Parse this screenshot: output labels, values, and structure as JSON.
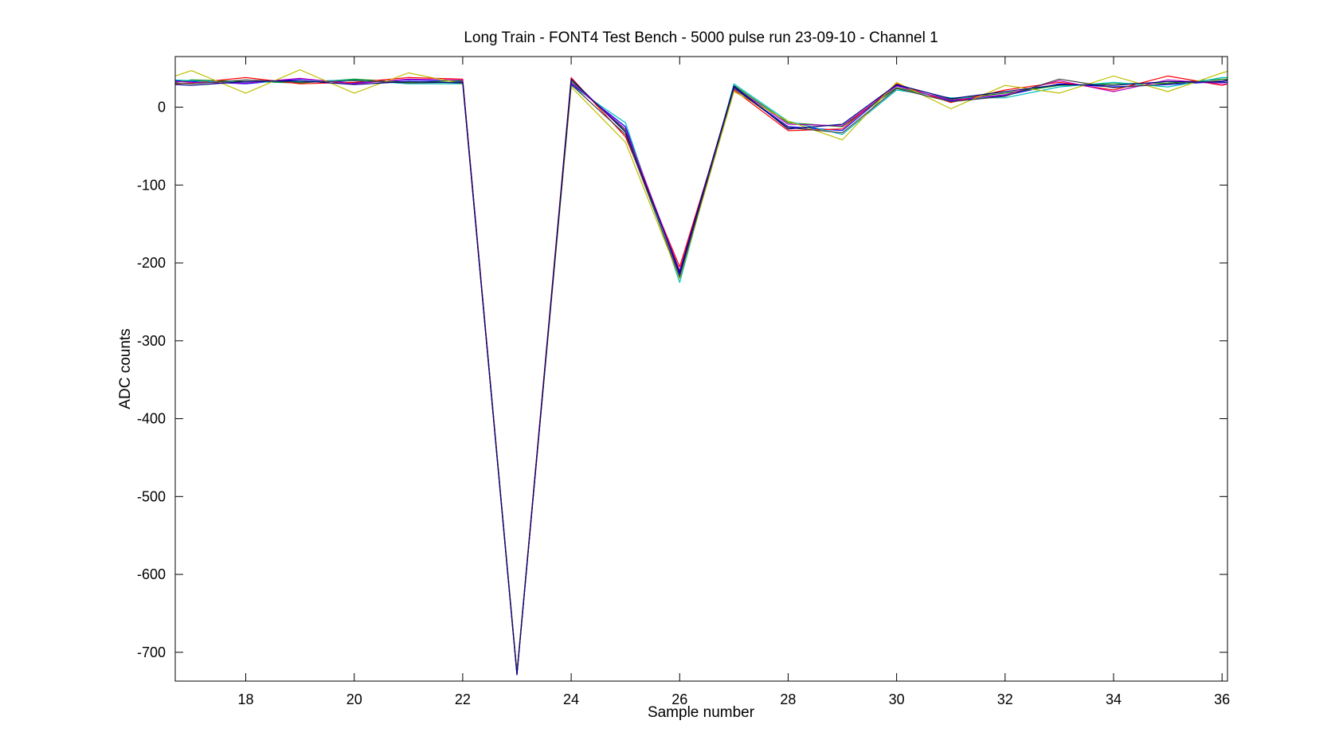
{
  "chart_data": {
    "type": "line",
    "title": "Long Train - FONT4 Test Bench - 5000 pulse run 23-09-10 - Channel 1",
    "xlabel": "Sample number",
    "ylabel": "ADC counts",
    "xlim": [
      16.7,
      36.1
    ],
    "ylim": [
      -737,
      65
    ],
    "xticks": [
      18,
      20,
      22,
      24,
      26,
      28,
      30,
      32,
      34,
      36
    ],
    "yticks": [
      0,
      -100,
      -200,
      -300,
      -400,
      -500,
      -600,
      -700
    ],
    "grid": false,
    "legend": "none",
    "x": [
      16.7,
      17,
      18,
      19,
      20,
      21,
      22,
      23,
      24,
      25,
      26,
      27,
      28,
      29,
      30,
      31,
      32,
      33,
      34,
      35,
      36,
      36.1
    ],
    "series": [
      {
        "color": "#0000ff",
        "values": [
          34,
          33,
          30,
          36,
          31,
          35,
          33,
          -728,
          30,
          -25,
          -215,
          25,
          -25,
          -30,
          28,
          8,
          15,
          30,
          26,
          29,
          33,
          34
        ]
      },
      {
        "color": "#008000",
        "values": [
          32,
          35,
          33,
          31,
          36,
          32,
          34,
          -726,
          34,
          -30,
          -220,
          28,
          -20,
          -25,
          25,
          10,
          18,
          28,
          30,
          31,
          36,
          36
        ]
      },
      {
        "color": "#ff0000",
        "values": [
          30,
          31,
          38,
          30,
          32,
          38,
          36,
          -725,
          38,
          -38,
          -205,
          22,
          -30,
          -28,
          30,
          6,
          22,
          32,
          22,
          40,
          28,
          30
        ]
      },
      {
        "color": "#00bfbf",
        "values": [
          35,
          34,
          32,
          33,
          35,
          30,
          30,
          -727,
          28,
          -20,
          -225,
          30,
          -18,
          -35,
          22,
          12,
          12,
          26,
          32,
          26,
          38,
          38
        ]
      },
      {
        "color": "#bf00bf",
        "values": [
          33,
          32,
          31,
          37,
          30,
          36,
          35,
          -728,
          32,
          -28,
          -210,
          26,
          -22,
          -24,
          27,
          9,
          16,
          34,
          20,
          35,
          30,
          30
        ]
      },
      {
        "color": "#bfbf00",
        "values": [
          40,
          47,
          18,
          48,
          18,
          44,
          30,
          -726,
          26,
          -45,
          -220,
          20,
          -18,
          -42,
          32,
          -2,
          28,
          18,
          40,
          20,
          44,
          46
        ]
      },
      {
        "color": "#404040",
        "values": [
          31,
          30,
          35,
          32,
          34,
          31,
          32,
          -727,
          29,
          -35,
          -218,
          24,
          -26,
          -33,
          24,
          7,
          14,
          36,
          25,
          30,
          34,
          35
        ]
      },
      {
        "color": "#000080",
        "values": [
          29,
          28,
          33,
          34,
          29,
          33,
          31,
          -729,
          36,
          -32,
          -212,
          27,
          -28,
          -22,
          29,
          11,
          20,
          29,
          28,
          33,
          32,
          32
        ]
      }
    ]
  }
}
